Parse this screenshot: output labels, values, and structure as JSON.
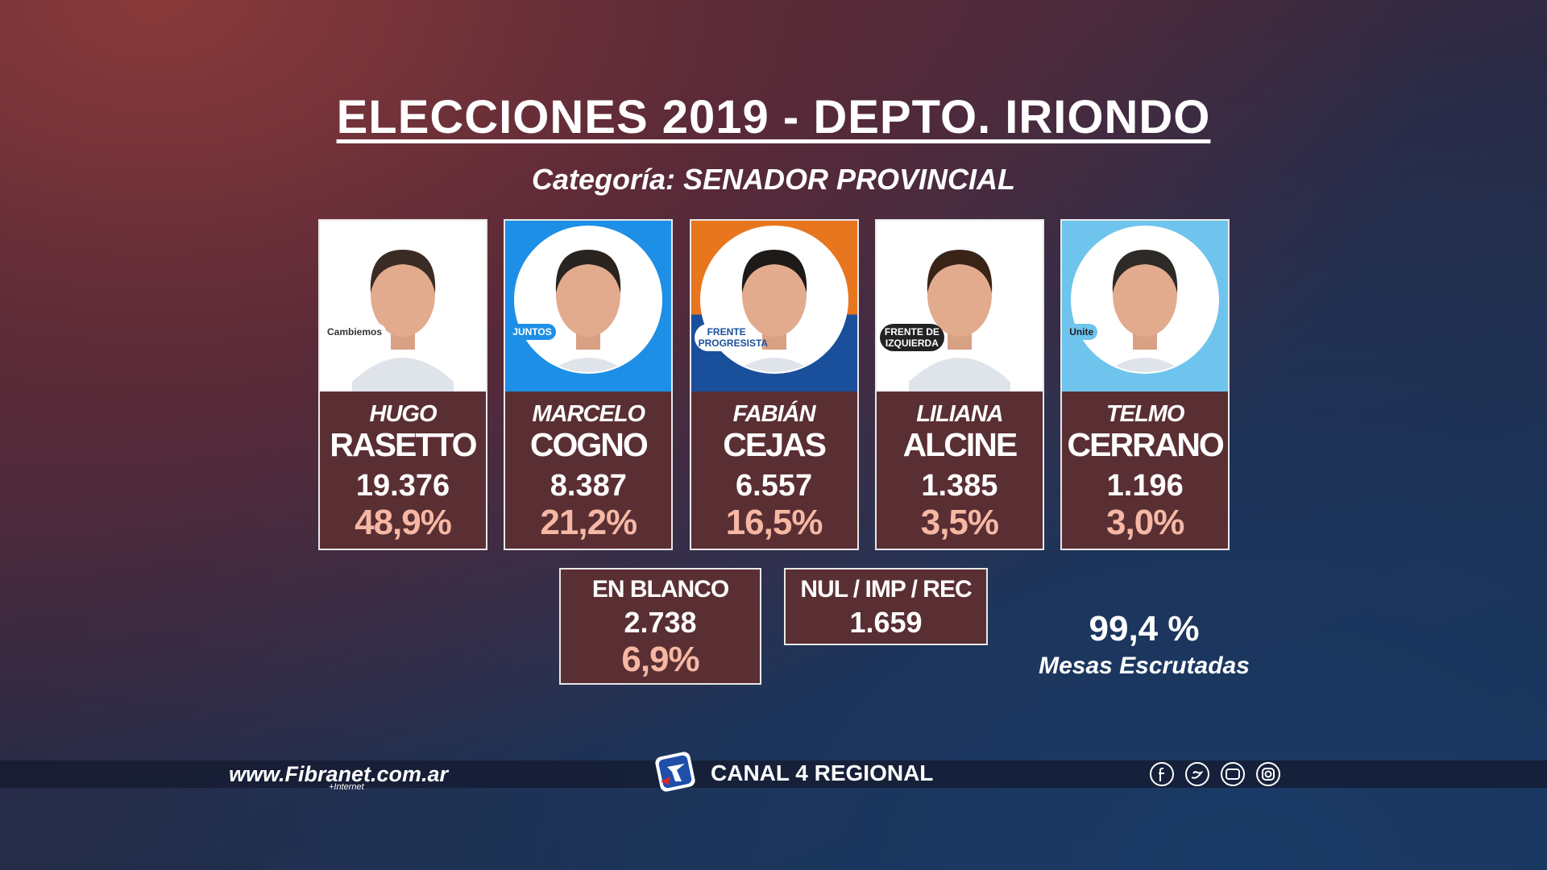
{
  "header": {
    "title": "ELECCIONES 2019 - DEPTO. IRIONDO",
    "subtitle": "Categoría: SENADOR PROVINCIAL"
  },
  "candidates": [
    {
      "party": "Cambiemos",
      "first_name": "HUGO",
      "last_name": "RASETTO",
      "votes": "19.376",
      "percent": "48,9%"
    },
    {
      "party": "JUNTOS",
      "first_name": "MARCELO",
      "last_name": "COGNO",
      "votes": "8.387",
      "percent": "21,2%"
    },
    {
      "party": "FRENTE PROGRESISTA",
      "first_name": "FABIÁN",
      "last_name": "CEJAS",
      "votes": "6.557",
      "percent": "16,5%"
    },
    {
      "party": "FRENTE DE IZQUIERDA",
      "first_name": "LILIANA",
      "last_name": "ALCINE",
      "votes": "1.385",
      "percent": "3,5%"
    },
    {
      "party": "Unite",
      "first_name": "TELMO",
      "last_name": "CERRANO",
      "votes": "1.196",
      "percent": "3,0%"
    }
  ],
  "blank": {
    "label": "EN BLANCO",
    "votes": "2.738",
    "percent": "6,9%"
  },
  "null_votes": {
    "label": "NUL / IMP / REC",
    "votes": "1.659"
  },
  "scrutiny": {
    "percent": "99,4 %",
    "label": "Mesas Escrutadas"
  },
  "footer": {
    "website": "www.Fibranet.com.ar",
    "website_note": "+Internet",
    "channel": "CANAL 4 REGIONAL"
  }
}
